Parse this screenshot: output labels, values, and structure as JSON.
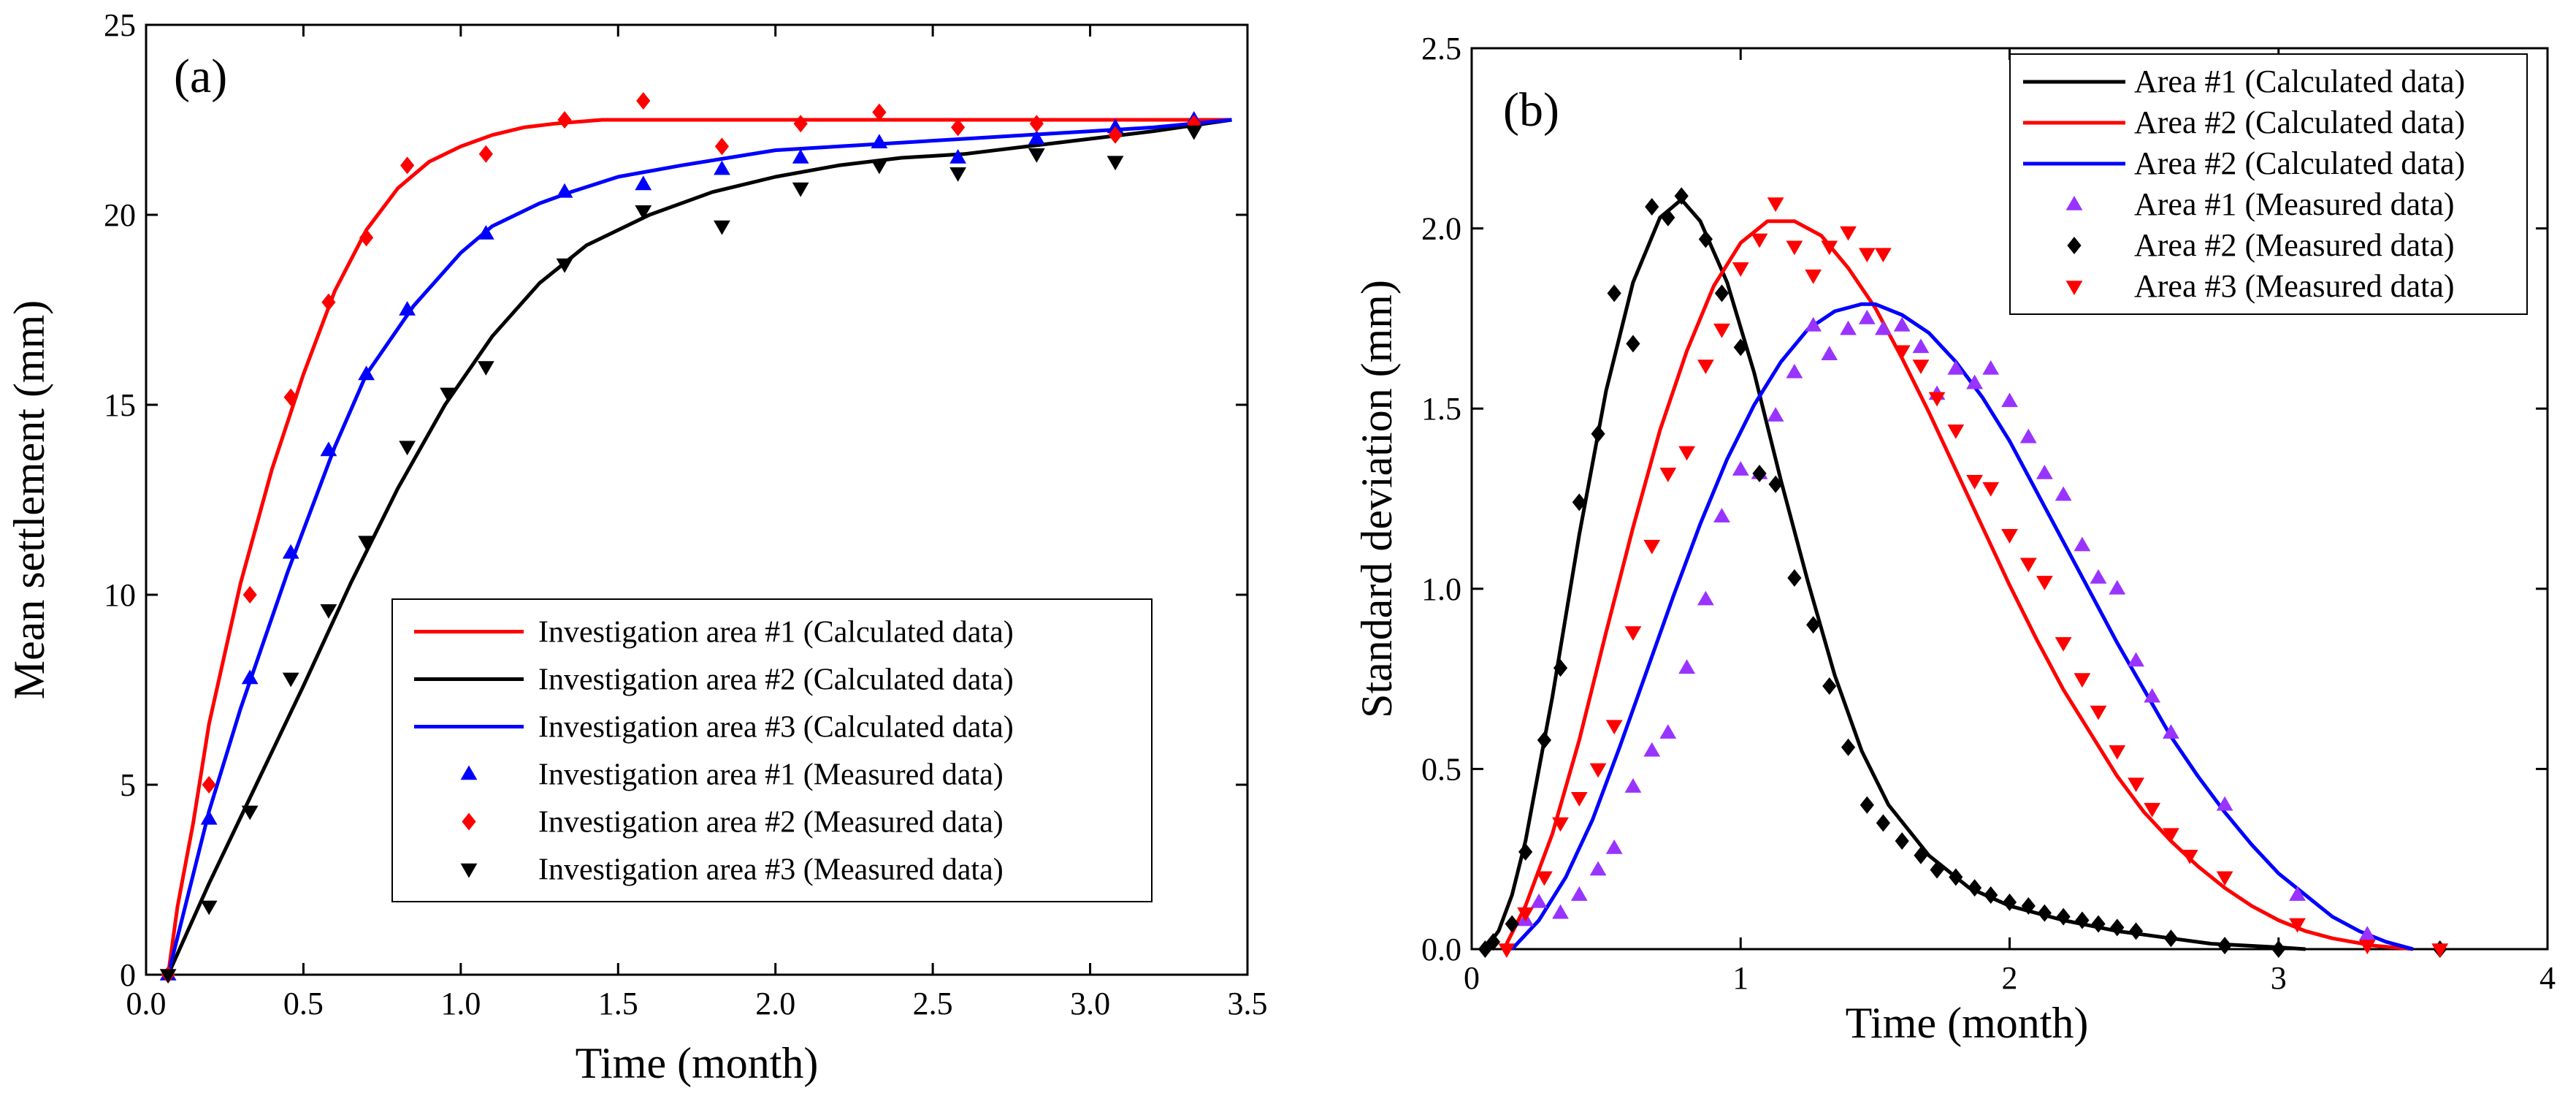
{
  "chart_data": [
    {
      "type": "line",
      "panel_label": "(a)",
      "xlabel": "Time (month)",
      "ylabel": "Mean settlement (mm)",
      "xlim": [
        0.0,
        3.5
      ],
      "ylim": [
        0,
        25
      ],
      "x_ticks": [
        "0.0",
        "0.5",
        "1.0",
        "1.5",
        "2.0",
        "2.5",
        "3.0",
        "3.5"
      ],
      "y_ticks": [
        "0",
        "5",
        "10",
        "15",
        "20",
        "25"
      ],
      "legend_position": "bottom-right",
      "series": [
        {
          "name": "Investigation area #1 (Calculated data)",
          "kind": "line",
          "color": "#ff0000",
          "x": [
            0.07,
            0.1,
            0.15,
            0.2,
            0.3,
            0.4,
            0.5,
            0.6,
            0.7,
            0.8,
            0.9,
            1.0,
            1.1,
            1.2,
            1.3,
            1.45,
            1.6,
            2.0,
            2.5,
            3.0,
            3.45
          ],
          "y": [
            0,
            1.8,
            4.0,
            6.6,
            10.3,
            13.3,
            15.8,
            18.0,
            19.6,
            20.7,
            21.4,
            21.8,
            22.1,
            22.3,
            22.4,
            22.5,
            22.5,
            22.5,
            22.5,
            22.5,
            22.5
          ]
        },
        {
          "name": "Investigation area #2 (Calculated data)",
          "kind": "line",
          "color": "#000000",
          "x": [
            0.07,
            0.2,
            0.35,
            0.5,
            0.65,
            0.8,
            0.95,
            1.1,
            1.25,
            1.4,
            1.6,
            1.8,
            2.0,
            2.2,
            2.4,
            2.6,
            2.8,
            3.0,
            3.2,
            3.45
          ],
          "y": [
            0,
            2.4,
            5.0,
            7.6,
            10.3,
            12.8,
            15.0,
            16.8,
            18.2,
            19.2,
            20.0,
            20.6,
            21.0,
            21.3,
            21.5,
            21.6,
            21.8,
            22.0,
            22.2,
            22.5
          ]
        },
        {
          "name": "Investigation area #3 (Calculated data)",
          "kind": "line",
          "color": "#0000ff",
          "x": [
            0.07,
            0.2,
            0.3,
            0.45,
            0.6,
            0.7,
            0.85,
            1.0,
            1.1,
            1.25,
            1.35,
            1.5,
            1.7,
            1.85,
            2.0,
            2.2,
            2.4,
            2.6,
            2.8,
            3.0,
            3.2,
            3.45
          ],
          "y": [
            0,
            4.3,
            7.0,
            10.6,
            13.9,
            15.8,
            17.6,
            19.0,
            19.7,
            20.3,
            20.6,
            21.0,
            21.3,
            21.5,
            21.7,
            21.8,
            21.9,
            22.0,
            22.1,
            22.2,
            22.3,
            22.5
          ]
        },
        {
          "name": "Investigation area #1 (Measured data)",
          "kind": "marker",
          "marker": "triangle-up",
          "color": "#0000ff",
          "x": [
            0.07,
            0.2,
            0.33,
            0.46,
            0.58,
            0.7,
            0.83,
            1.08,
            1.33,
            1.58,
            1.83,
            2.08,
            2.33,
            2.58,
            2.83,
            3.08,
            3.33
          ],
          "y": [
            0,
            4.1,
            7.8,
            11.1,
            13.8,
            15.8,
            17.5,
            19.5,
            20.6,
            20.8,
            21.2,
            21.5,
            21.9,
            21.5,
            22.0,
            22.3,
            22.5
          ]
        },
        {
          "name": "Investigation area #2 (Measured data)",
          "kind": "marker",
          "marker": "diamond",
          "color": "#ff0000",
          "x": [
            0.07,
            0.2,
            0.33,
            0.46,
            0.58,
            0.7,
            0.83,
            1.08,
            1.33,
            1.58,
            1.83,
            2.08,
            2.33,
            2.58,
            2.83,
            3.08,
            3.33
          ],
          "y": [
            0,
            5.0,
            10.0,
            15.2,
            17.7,
            19.4,
            21.3,
            21.6,
            22.5,
            23.0,
            21.8,
            22.4,
            22.7,
            22.3,
            22.4,
            22.1,
            22.4
          ]
        },
        {
          "name": "Investigation area #3 (Measured data)",
          "kind": "marker",
          "marker": "triangle-down",
          "color": "#000000",
          "x": [
            0.07,
            0.2,
            0.33,
            0.46,
            0.58,
            0.7,
            0.83,
            0.96,
            1.08,
            1.33,
            1.58,
            1.83,
            2.08,
            2.33,
            2.58,
            2.83,
            3.08,
            3.33
          ],
          "y": [
            0,
            1.8,
            4.3,
            7.8,
            9.6,
            11.4,
            13.9,
            15.3,
            16.0,
            18.7,
            20.1,
            19.7,
            20.7,
            21.3,
            21.1,
            21.6,
            21.4,
            22.2
          ]
        }
      ]
    },
    {
      "type": "line",
      "panel_label": "(b)",
      "xlabel": "Time (month)",
      "ylabel": "Standard deviation (mm)",
      "xlim": [
        0,
        4
      ],
      "ylim": [
        0.0,
        2.5
      ],
      "x_ticks": [
        "0",
        "1",
        "2",
        "3",
        "4"
      ],
      "y_ticks": [
        "0.0",
        "0.5",
        "1.0",
        "1.5",
        "2.0",
        "2.5"
      ],
      "legend_position": "top-right",
      "series": [
        {
          "name": "Area #1 (Calculated data)",
          "kind": "line",
          "color": "#000000",
          "x": [
            0.05,
            0.1,
            0.15,
            0.2,
            0.3,
            0.4,
            0.5,
            0.6,
            0.7,
            0.78,
            0.85,
            0.95,
            1.05,
            1.15,
            1.25,
            1.35,
            1.45,
            1.55,
            1.7,
            1.85,
            2.0,
            2.2,
            2.4,
            2.6,
            2.75,
            3.0,
            3.1
          ],
          "y": [
            0,
            0.05,
            0.15,
            0.3,
            0.7,
            1.15,
            1.55,
            1.85,
            2.03,
            2.08,
            2.02,
            1.85,
            1.6,
            1.3,
            1.02,
            0.76,
            0.55,
            0.4,
            0.26,
            0.17,
            0.12,
            0.08,
            0.05,
            0.03,
            0.015,
            0.005,
            0
          ]
        },
        {
          "name": "Area #2 (Calculated data)",
          "kind": "line",
          "color": "#ff0000",
          "x": [
            0.12,
            0.2,
            0.3,
            0.4,
            0.5,
            0.6,
            0.7,
            0.8,
            0.9,
            1.0,
            1.1,
            1.2,
            1.3,
            1.4,
            1.5,
            1.6,
            1.7,
            1.8,
            1.9,
            2.0,
            2.1,
            2.2,
            2.3,
            2.4,
            2.5,
            2.6,
            2.7,
            2.8,
            2.9,
            3.0,
            3.1,
            3.2,
            3.35,
            3.5
          ],
          "y": [
            0,
            0.12,
            0.32,
            0.58,
            0.88,
            1.17,
            1.44,
            1.66,
            1.84,
            1.96,
            2.02,
            2.02,
            1.98,
            1.89,
            1.78,
            1.64,
            1.49,
            1.33,
            1.17,
            1.01,
            0.86,
            0.72,
            0.6,
            0.48,
            0.38,
            0.3,
            0.23,
            0.17,
            0.12,
            0.08,
            0.05,
            0.03,
            0.01,
            0
          ]
        },
        {
          "name": "Area #2 (Calculated data)",
          "kind": "line",
          "color": "#0000ff",
          "x": [
            0.15,
            0.25,
            0.35,
            0.45,
            0.55,
            0.65,
            0.75,
            0.85,
            0.95,
            1.05,
            1.15,
            1.25,
            1.35,
            1.45,
            1.5,
            1.6,
            1.7,
            1.8,
            1.9,
            2.0,
            2.1,
            2.2,
            2.3,
            2.4,
            2.5,
            2.6,
            2.7,
            2.8,
            2.9,
            3.0,
            3.1,
            3.2,
            3.3,
            3.4,
            3.5
          ],
          "y": [
            0,
            0.08,
            0.2,
            0.36,
            0.56,
            0.77,
            0.98,
            1.18,
            1.36,
            1.51,
            1.63,
            1.72,
            1.77,
            1.79,
            1.79,
            1.76,
            1.71,
            1.63,
            1.53,
            1.41,
            1.27,
            1.13,
            0.99,
            0.85,
            0.72,
            0.59,
            0.48,
            0.38,
            0.29,
            0.21,
            0.15,
            0.09,
            0.05,
            0.02,
            0
          ]
        },
        {
          "name": "Area #1 (Measured data)",
          "kind": "marker",
          "marker": "triangle-up",
          "color": "#9933ff",
          "x": [
            0.2,
            0.25,
            0.33,
            0.4,
            0.47,
            0.53,
            0.6,
            0.67,
            0.73,
            0.8,
            0.87,
            0.93,
            1.0,
            1.07,
            1.13,
            1.2,
            1.27,
            1.33,
            1.4,
            1.47,
            1.53,
            1.6,
            1.67,
            1.73,
            1.8,
            1.87,
            1.93,
            2.0,
            2.07,
            2.13,
            2.2,
            2.27,
            2.33,
            2.4,
            2.47,
            2.53,
            2.6,
            2.8,
            3.07,
            3.33
          ],
          "y": [
            0.08,
            0.13,
            0.1,
            0.15,
            0.22,
            0.28,
            0.45,
            0.55,
            0.6,
            0.78,
            0.97,
            1.2,
            1.33,
            1.32,
            1.48,
            1.6,
            1.73,
            1.65,
            1.72,
            1.75,
            1.72,
            1.73,
            1.67,
            1.54,
            1.61,
            1.57,
            1.61,
            1.52,
            1.42,
            1.32,
            1.26,
            1.12,
            1.03,
            1.0,
            0.8,
            0.7,
            0.6,
            0.4,
            0.15,
            0.04
          ]
        },
        {
          "name": "Area #2 (Measured data)",
          "kind": "marker",
          "marker": "diamond",
          "color": "#000000",
          "x": [
            0.05,
            0.08,
            0.15,
            0.2,
            0.27,
            0.33,
            0.4,
            0.47,
            0.53,
            0.6,
            0.67,
            0.73,
            0.78,
            0.87,
            0.93,
            1.0,
            1.07,
            1.13,
            1.2,
            1.27,
            1.33,
            1.4,
            1.47,
            1.53,
            1.6,
            1.67,
            1.73,
            1.8,
            1.87,
            1.93,
            2.0,
            2.07,
            2.13,
            2.2,
            2.27,
            2.33,
            2.4,
            2.47,
            2.6,
            2.8,
            3.0,
            3.6
          ],
          "y": [
            0.0,
            0.02,
            0.07,
            0.27,
            0.58,
            0.78,
            1.24,
            1.43,
            1.82,
            1.68,
            2.06,
            2.03,
            2.09,
            1.97,
            1.82,
            1.67,
            1.32,
            1.29,
            1.03,
            0.9,
            0.73,
            0.56,
            0.4,
            0.35,
            0.3,
            0.26,
            0.22,
            0.2,
            0.17,
            0.15,
            0.13,
            0.12,
            0.1,
            0.09,
            0.08,
            0.07,
            0.06,
            0.05,
            0.03,
            0.01,
            0.0,
            0.0
          ]
        },
        {
          "name": "Area #3 (Measured data)",
          "kind": "marker",
          "marker": "triangle-down",
          "color": "#ff0000",
          "x": [
            0.13,
            0.2,
            0.27,
            0.33,
            0.4,
            0.47,
            0.53,
            0.6,
            0.67,
            0.73,
            0.8,
            0.87,
            0.93,
            1.0,
            1.07,
            1.13,
            1.2,
            1.27,
            1.33,
            1.4,
            1.47,
            1.53,
            1.6,
            1.67,
            1.73,
            1.8,
            1.87,
            1.93,
            2.0,
            2.07,
            2.13,
            2.2,
            2.27,
            2.33,
            2.4,
            2.47,
            2.53,
            2.6,
            2.67,
            2.8,
            3.07,
            3.33,
            3.6
          ],
          "y": [
            0.0,
            0.1,
            0.2,
            0.35,
            0.42,
            0.5,
            0.62,
            0.88,
            1.12,
            1.32,
            1.38,
            1.62,
            1.72,
            1.89,
            1.97,
            2.07,
            1.95,
            1.87,
            1.95,
            1.99,
            1.93,
            1.93,
            1.66,
            1.62,
            1.53,
            1.44,
            1.3,
            1.28,
            1.15,
            1.07,
            1.02,
            0.85,
            0.75,
            0.66,
            0.55,
            0.46,
            0.39,
            0.32,
            0.26,
            0.2,
            0.07,
            0.01,
            0.0
          ]
        }
      ]
    }
  ]
}
